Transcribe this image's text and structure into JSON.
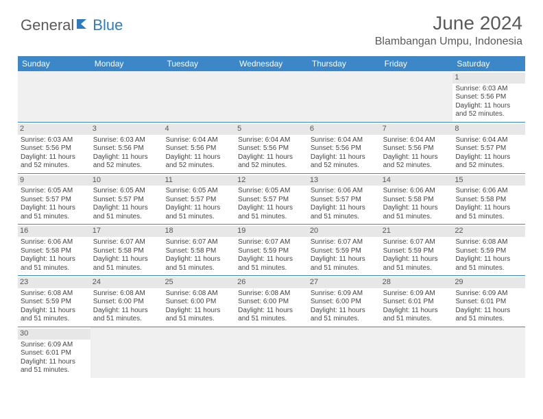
{
  "logo": {
    "part1": "General",
    "part2": "Blue"
  },
  "title": "June 2024",
  "location": "Blambangan Umpu, Indonesia",
  "colors": {
    "header_bg": "#3b87c8",
    "header_text": "#ffffff",
    "daynum_bg": "#e7e7e7",
    "empty_bg": "#f0f0f0",
    "border": "#3b87c8",
    "logo_gray": "#5a5a5a",
    "logo_blue": "#2f7bbf"
  },
  "day_names": [
    "Sunday",
    "Monday",
    "Tuesday",
    "Wednesday",
    "Thursday",
    "Friday",
    "Saturday"
  ],
  "weeks": [
    [
      null,
      null,
      null,
      null,
      null,
      null,
      {
        "n": "1",
        "sr": "Sunrise: 6:03 AM",
        "ss": "Sunset: 5:56 PM",
        "dl": "Daylight: 11 hours and 52 minutes."
      }
    ],
    [
      {
        "n": "2",
        "sr": "Sunrise: 6:03 AM",
        "ss": "Sunset: 5:56 PM",
        "dl": "Daylight: 11 hours and 52 minutes."
      },
      {
        "n": "3",
        "sr": "Sunrise: 6:03 AM",
        "ss": "Sunset: 5:56 PM",
        "dl": "Daylight: 11 hours and 52 minutes."
      },
      {
        "n": "4",
        "sr": "Sunrise: 6:04 AM",
        "ss": "Sunset: 5:56 PM",
        "dl": "Daylight: 11 hours and 52 minutes."
      },
      {
        "n": "5",
        "sr": "Sunrise: 6:04 AM",
        "ss": "Sunset: 5:56 PM",
        "dl": "Daylight: 11 hours and 52 minutes."
      },
      {
        "n": "6",
        "sr": "Sunrise: 6:04 AM",
        "ss": "Sunset: 5:56 PM",
        "dl": "Daylight: 11 hours and 52 minutes."
      },
      {
        "n": "7",
        "sr": "Sunrise: 6:04 AM",
        "ss": "Sunset: 5:56 PM",
        "dl": "Daylight: 11 hours and 52 minutes."
      },
      {
        "n": "8",
        "sr": "Sunrise: 6:04 AM",
        "ss": "Sunset: 5:57 PM",
        "dl": "Daylight: 11 hours and 52 minutes."
      }
    ],
    [
      {
        "n": "9",
        "sr": "Sunrise: 6:05 AM",
        "ss": "Sunset: 5:57 PM",
        "dl": "Daylight: 11 hours and 51 minutes."
      },
      {
        "n": "10",
        "sr": "Sunrise: 6:05 AM",
        "ss": "Sunset: 5:57 PM",
        "dl": "Daylight: 11 hours and 51 minutes."
      },
      {
        "n": "11",
        "sr": "Sunrise: 6:05 AM",
        "ss": "Sunset: 5:57 PM",
        "dl": "Daylight: 11 hours and 51 minutes."
      },
      {
        "n": "12",
        "sr": "Sunrise: 6:05 AM",
        "ss": "Sunset: 5:57 PM",
        "dl": "Daylight: 11 hours and 51 minutes."
      },
      {
        "n": "13",
        "sr": "Sunrise: 6:06 AM",
        "ss": "Sunset: 5:57 PM",
        "dl": "Daylight: 11 hours and 51 minutes."
      },
      {
        "n": "14",
        "sr": "Sunrise: 6:06 AM",
        "ss": "Sunset: 5:58 PM",
        "dl": "Daylight: 11 hours and 51 minutes."
      },
      {
        "n": "15",
        "sr": "Sunrise: 6:06 AM",
        "ss": "Sunset: 5:58 PM",
        "dl": "Daylight: 11 hours and 51 minutes."
      }
    ],
    [
      {
        "n": "16",
        "sr": "Sunrise: 6:06 AM",
        "ss": "Sunset: 5:58 PM",
        "dl": "Daylight: 11 hours and 51 minutes."
      },
      {
        "n": "17",
        "sr": "Sunrise: 6:07 AM",
        "ss": "Sunset: 5:58 PM",
        "dl": "Daylight: 11 hours and 51 minutes."
      },
      {
        "n": "18",
        "sr": "Sunrise: 6:07 AM",
        "ss": "Sunset: 5:58 PM",
        "dl": "Daylight: 11 hours and 51 minutes."
      },
      {
        "n": "19",
        "sr": "Sunrise: 6:07 AM",
        "ss": "Sunset: 5:59 PM",
        "dl": "Daylight: 11 hours and 51 minutes."
      },
      {
        "n": "20",
        "sr": "Sunrise: 6:07 AM",
        "ss": "Sunset: 5:59 PM",
        "dl": "Daylight: 11 hours and 51 minutes."
      },
      {
        "n": "21",
        "sr": "Sunrise: 6:07 AM",
        "ss": "Sunset: 5:59 PM",
        "dl": "Daylight: 11 hours and 51 minutes."
      },
      {
        "n": "22",
        "sr": "Sunrise: 6:08 AM",
        "ss": "Sunset: 5:59 PM",
        "dl": "Daylight: 11 hours and 51 minutes."
      }
    ],
    [
      {
        "n": "23",
        "sr": "Sunrise: 6:08 AM",
        "ss": "Sunset: 5:59 PM",
        "dl": "Daylight: 11 hours and 51 minutes."
      },
      {
        "n": "24",
        "sr": "Sunrise: 6:08 AM",
        "ss": "Sunset: 6:00 PM",
        "dl": "Daylight: 11 hours and 51 minutes."
      },
      {
        "n": "25",
        "sr": "Sunrise: 6:08 AM",
        "ss": "Sunset: 6:00 PM",
        "dl": "Daylight: 11 hours and 51 minutes."
      },
      {
        "n": "26",
        "sr": "Sunrise: 6:08 AM",
        "ss": "Sunset: 6:00 PM",
        "dl": "Daylight: 11 hours and 51 minutes."
      },
      {
        "n": "27",
        "sr": "Sunrise: 6:09 AM",
        "ss": "Sunset: 6:00 PM",
        "dl": "Daylight: 11 hours and 51 minutes."
      },
      {
        "n": "28",
        "sr": "Sunrise: 6:09 AM",
        "ss": "Sunset: 6:01 PM",
        "dl": "Daylight: 11 hours and 51 minutes."
      },
      {
        "n": "29",
        "sr": "Sunrise: 6:09 AM",
        "ss": "Sunset: 6:01 PM",
        "dl": "Daylight: 11 hours and 51 minutes."
      }
    ],
    [
      {
        "n": "30",
        "sr": "Sunrise: 6:09 AM",
        "ss": "Sunset: 6:01 PM",
        "dl": "Daylight: 11 hours and 51 minutes."
      },
      null,
      null,
      null,
      null,
      null,
      null
    ]
  ]
}
